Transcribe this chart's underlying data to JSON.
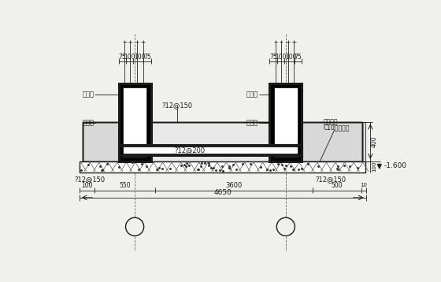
{
  "bg_color": "#f0f0ec",
  "line_color": "#1a1a1a",
  "fig_width": 5.6,
  "fig_height": 3.58,
  "dpi": 100,
  "labels": {
    "shear_wall": "剪力墙",
    "jichuliang": "基础梁",
    "rebar_12_150_top": "?12@150",
    "rebar_12_200": "?12@200",
    "rebar_12_150_bot": "?12@150",
    "dim_75": "75",
    "dim_100a": "100",
    "dim_100b": "100",
    "dim_75b": "75",
    "dim_100_left": "100",
    "dim_550": "550",
    "dim_3600": "3600",
    "dim_500": "500",
    "dim_10_right": "10",
    "dim_4650": "4650",
    "dim_400": "400",
    "dim_100_slab": "100",
    "elev": "-1.600",
    "c10_line1": "基础垫层",
    "c10_line2": "C10素混凝土"
  },
  "xlim": [
    0,
    560
  ],
  "ylim": [
    0,
    358
  ],
  "lw_thick": 2.2,
  "lw_med": 1.0,
  "lw_thin": 0.6
}
